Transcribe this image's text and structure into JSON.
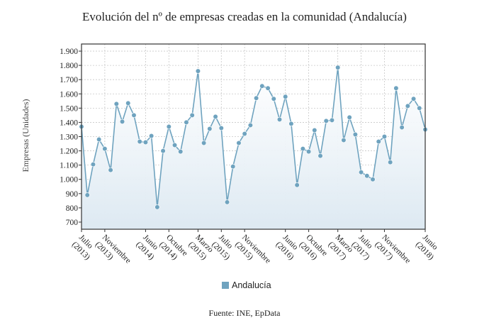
{
  "chart_data": {
    "type": "area",
    "title": "Evolución del nº de empresas creadas en la comunidad (Andalucía)",
    "ylabel": "Empresas (Unidades)",
    "xlabel": "",
    "source": "Fuente: INE, EpData",
    "ylim": [
      650,
      1950
    ],
    "yticks": [
      "700",
      "800",
      "900",
      "1.000",
      "1.100",
      "1.200",
      "1.300",
      "1.400",
      "1.500",
      "1.600",
      "1.700",
      "1.800",
      "1.900"
    ],
    "ytick_values": [
      700,
      800,
      900,
      1000,
      1100,
      1200,
      1300,
      1400,
      1500,
      1600,
      1700,
      1800,
      1900
    ],
    "xtick_labels": [
      {
        "index": 0,
        "lines": [
          "Julio",
          "(2013)"
        ]
      },
      {
        "index": 4,
        "lines": [
          "Noviembre",
          "(2013)"
        ]
      },
      {
        "index": 11,
        "lines": [
          "Junio",
          "(2014)"
        ]
      },
      {
        "index": 15,
        "lines": [
          "Octubre",
          "(2014)"
        ]
      },
      {
        "index": 20,
        "lines": [
          "Marzo",
          "(2015)"
        ]
      },
      {
        "index": 24,
        "lines": [
          "Julio",
          "(2015)"
        ]
      },
      {
        "index": 28,
        "lines": [
          "Noviembre",
          "(2015)"
        ]
      },
      {
        "index": 35,
        "lines": [
          "Junio",
          "(2016)"
        ]
      },
      {
        "index": 39,
        "lines": [
          "Octubre",
          "(2016)"
        ]
      },
      {
        "index": 44,
        "lines": [
          "Marzo",
          "(2017)"
        ]
      },
      {
        "index": 48,
        "lines": [
          "Julio",
          "(2017)"
        ]
      },
      {
        "index": 52,
        "lines": [
          "Noviembre",
          "(2017)"
        ]
      },
      {
        "index": 59,
        "lines": [
          "Junio",
          "(2018)"
        ]
      }
    ],
    "grid": true,
    "legend": "bottom-center",
    "series": [
      {
        "name": "Andalucía",
        "color": "#6fa3bf",
        "values": [
          1370,
          890,
          1105,
          1280,
          1215,
          1065,
          1530,
          1405,
          1535,
          1450,
          1265,
          1260,
          1305,
          805,
          1200,
          1370,
          1240,
          1195,
          1400,
          1450,
          1760,
          1255,
          1355,
          1440,
          1360,
          840,
          1090,
          1255,
          1320,
          1380,
          1570,
          1655,
          1640,
          1565,
          1420,
          1580,
          1390,
          960,
          1215,
          1195,
          1345,
          1165,
          1410,
          1415,
          1785,
          1275,
          1435,
          1315,
          1050,
          1025,
          1000,
          1265,
          1300,
          1120,
          1640,
          1365,
          1515,
          1565,
          1500,
          1350
        ]
      }
    ]
  }
}
